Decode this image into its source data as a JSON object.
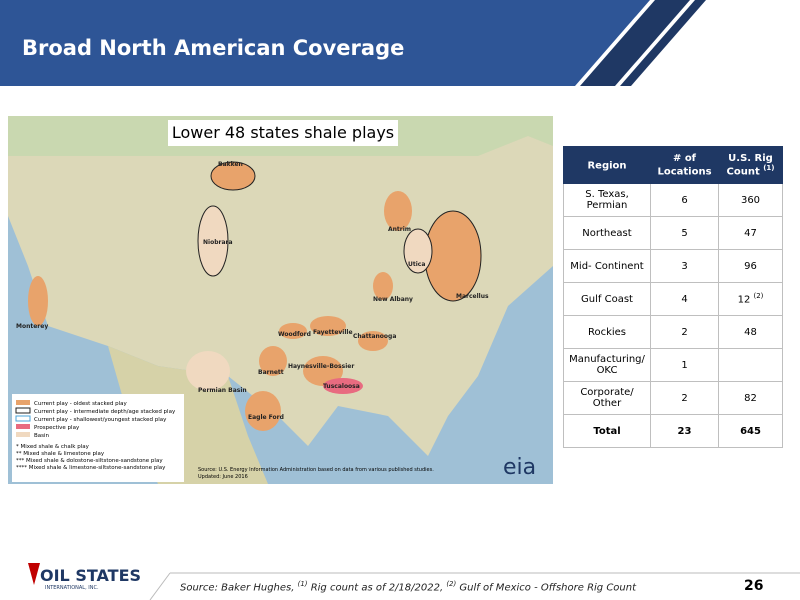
{
  "header": {
    "title": "Broad North American Coverage"
  },
  "map": {
    "title": "Lower 48 states shale plays",
    "labels": [
      "Bakken",
      "Niobrara",
      "Marcellus",
      "Utica",
      "Antrim",
      "New Albany",
      "Fayetteville",
      "Woodford",
      "Barnett",
      "Haynesville-Bossier",
      "Eagle Ford",
      "Monterey",
      "Permian Basin",
      "Tuscaloosa",
      "Chattanooga"
    ],
    "legend": [
      "Current play - oldest stacked play",
      "Current play - intermediate depth/age stacked play",
      "Current play - shallowest/youngest stacked play",
      "Prospective play",
      "Basin"
    ],
    "notes": [
      "* Mixed shale & chalk play",
      "** Mixed shale & limestone play",
      "*** Mixed shale & dolostone-siltstone-sandstone play",
      "**** Mixed shale & limestone-siltstone-sandstone play"
    ],
    "source": "Source: U.S. Energy Information Administration based on data from various published studies.",
    "updated": "Updated: June 2016",
    "logo": "eia"
  },
  "table": {
    "columns": [
      {
        "text": "Region"
      },
      {
        "text": "# of Locations"
      },
      {
        "text": "U.S. Rig Count",
        "note": "(1)"
      }
    ],
    "rows": [
      [
        "S. Texas, Permian",
        6,
        360
      ],
      [
        "Northeast",
        5,
        47
      ],
      [
        "Mid- Continent",
        3,
        96
      ],
      [
        "Gulf Coast",
        4,
        {
          "text": 12,
          "note": "(2)"
        }
      ],
      [
        "Rockies",
        2,
        48
      ],
      [
        "Manufacturing/ OKC",
        1,
        null
      ],
      [
        "Corporate/ Other",
        2,
        82
      ],
      [
        "Total",
        23,
        645
      ]
    ]
  },
  "footer": {
    "logo": "OIL STATES",
    "logo_sub": "INTERNATIONAL, INC.",
    "source": [
      "Source: Baker Hughes, ",
      "(1)",
      " Rig count as of 2/18/2022, ",
      "(2)",
      " Gulf of Mexico - Offshore Rig Count"
    ],
    "page": 26
  }
}
